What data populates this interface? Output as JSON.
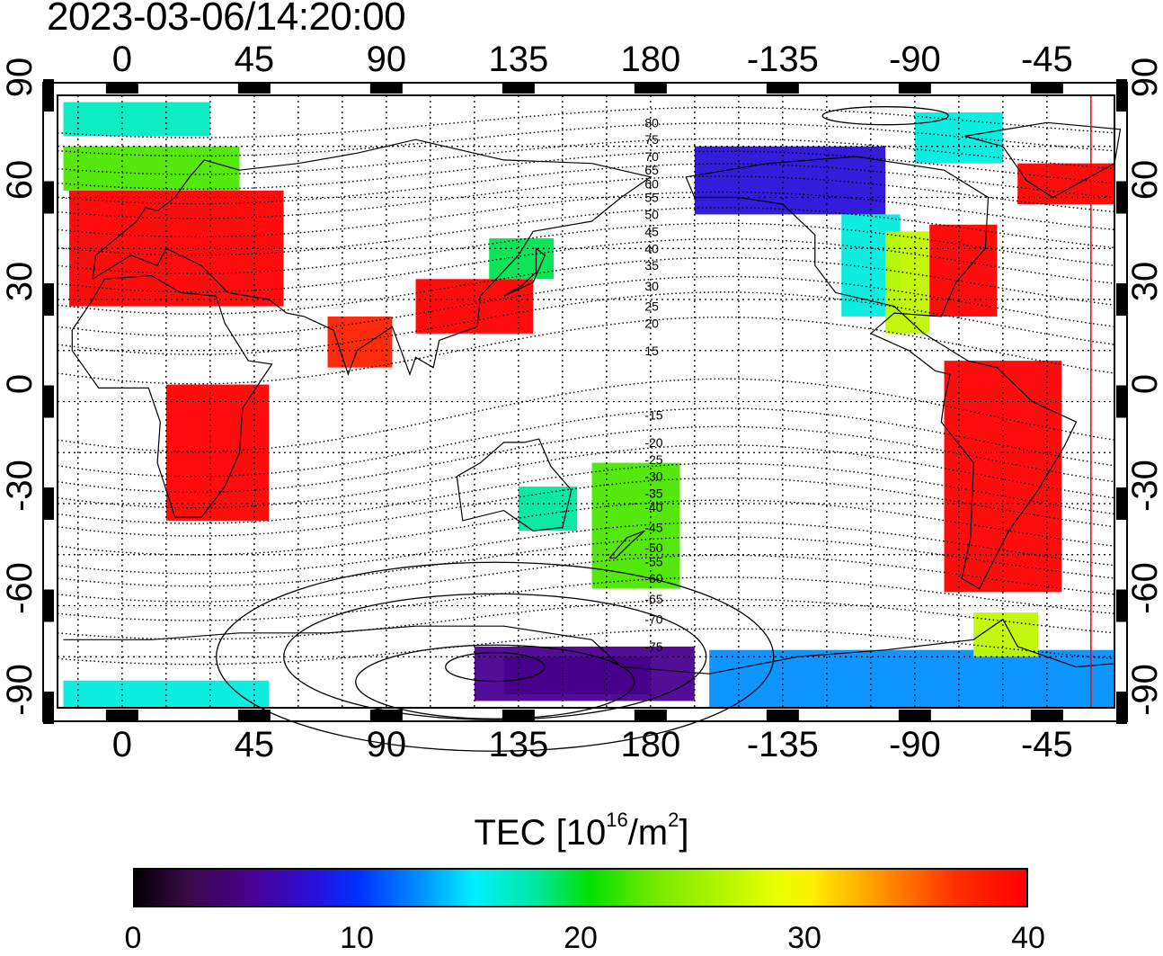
{
  "timestamp": "2023-03-06/14:20:00",
  "chart_data": {
    "type": "heatmap",
    "title": "2023-03-06/14:20:00",
    "x_axis": {
      "top_ticks": [
        {
          "label": "0",
          "lon": 0
        },
        {
          "label": "45",
          "lon": 45
        },
        {
          "label": "90",
          "lon": 90
        },
        {
          "label": "135",
          "lon": 135
        },
        {
          "label": "180",
          "lon": 180
        },
        {
          "label": "-135",
          "lon": 225
        },
        {
          "label": "-90",
          "lon": 270
        },
        {
          "label": "-45",
          "lon": 315
        }
      ],
      "bottom_ticks": [
        {
          "label": "0",
          "lon": 0
        },
        {
          "label": "45",
          "lon": 45
        },
        {
          "label": "90",
          "lon": 90
        },
        {
          "label": "135",
          "lon": 135
        },
        {
          "label": "180",
          "lon": 180
        },
        {
          "label": "-135",
          "lon": 225
        },
        {
          "label": "-90",
          "lon": 270
        },
        {
          "label": "-45",
          "lon": 315
        }
      ],
      "range": [
        -22,
        338
      ]
    },
    "y_axis": {
      "ticks": [
        {
          "label": "90",
          "lat": 90
        },
        {
          "label": "60",
          "lat": 60
        },
        {
          "label": "30",
          "lat": 30
        },
        {
          "label": "0",
          "lat": 0
        },
        {
          "label": "-30",
          "lat": -30
        },
        {
          "label": "-60",
          "lat": -60
        },
        {
          "label": "-90",
          "lat": -90
        }
      ],
      "range": [
        -90,
        90
      ]
    },
    "magnetic_lat_labels": [
      {
        "label": "80",
        "lat": 82
      },
      {
        "label": "75",
        "lat": 77
      },
      {
        "label": "70",
        "lat": 72
      },
      {
        "label": "65",
        "lat": 68
      },
      {
        "label": "60",
        "lat": 64
      },
      {
        "label": "55",
        "lat": 60
      },
      {
        "label": "50",
        "lat": 55
      },
      {
        "label": "45",
        "lat": 50
      },
      {
        "label": "40",
        "lat": 45
      },
      {
        "label": "35",
        "lat": 40
      },
      {
        "label": "30",
        "lat": 34
      },
      {
        "label": "25",
        "lat": 28
      },
      {
        "label": "20",
        "lat": 23
      },
      {
        "label": "15",
        "lat": 15
      },
      {
        "label": "-15",
        "lat": -4
      },
      {
        "label": "-20",
        "lat": -12
      },
      {
        "label": "-25",
        "lat": -17
      },
      {
        "label": "-30",
        "lat": -22
      },
      {
        "label": "-35",
        "lat": -27
      },
      {
        "label": "-40",
        "lat": -31
      },
      {
        "label": "-45",
        "lat": -37
      },
      {
        "label": "-50",
        "lat": -43
      },
      {
        "label": "-55",
        "lat": -47
      },
      {
        "label": "-60",
        "lat": -52
      },
      {
        "label": "-65",
        "lat": -58
      },
      {
        "label": "-70",
        "lat": -64
      },
      {
        "label": "-75",
        "lat": -72
      }
    ],
    "tec_regions": [
      {
        "name": "europe",
        "lon": [
          -18,
          55
        ],
        "lat": [
          28,
          62
        ],
        "tec": 40
      },
      {
        "name": "n-europe",
        "lon": [
          -20,
          40
        ],
        "lat": [
          62,
          75
        ],
        "tec": 22
      },
      {
        "name": "arctic-atlantic",
        "lon": [
          -20,
          30
        ],
        "lat": [
          78,
          88
        ],
        "tec": 17
      },
      {
        "name": "east-asia",
        "lon": [
          100,
          140
        ],
        "lat": [
          20,
          36
        ],
        "tec": 40
      },
      {
        "name": "japan",
        "lon": [
          125,
          147
        ],
        "lat": [
          36,
          48
        ],
        "tec": 19
      },
      {
        "name": "india",
        "lon": [
          70,
          92
        ],
        "lat": [
          10,
          25
        ],
        "tec": 38
      },
      {
        "name": "africa",
        "lon": [
          15,
          50
        ],
        "lat": [
          -35,
          5
        ],
        "tec": 40
      },
      {
        "name": "canada",
        "lon": [
          195,
          260
        ],
        "lat": [
          55,
          75
        ],
        "tec": 8
      },
      {
        "name": "w-usa",
        "lon": [
          245,
          265
        ],
        "lat": [
          25,
          55
        ],
        "tec": 16
      },
      {
        "name": "mid-usa",
        "lon": [
          260,
          275
        ],
        "lat": [
          20,
          50
        ],
        "tec": 27
      },
      {
        "name": "e-usa",
        "lon": [
          275,
          298
        ],
        "lat": [
          25,
          52
        ],
        "tec": 40
      },
      {
        "name": "greenland-n",
        "lon": [
          270,
          300
        ],
        "lat": [
          70,
          85
        ],
        "tec": 16
      },
      {
        "name": "n-atlantic",
        "lon": [
          305,
          338
        ],
        "lat": [
          58,
          70
        ],
        "tec": 40
      },
      {
        "name": "s-america",
        "lon": [
          280,
          320
        ],
        "lat": [
          -56,
          12
        ],
        "tec": 40
      },
      {
        "name": "nz-pacific",
        "lon": [
          160,
          190
        ],
        "lat": [
          -55,
          -18
        ],
        "tec": 22
      },
      {
        "name": "australia",
        "lon": [
          135,
          155
        ],
        "lat": [
          -38,
          -25
        ],
        "tec": 18
      },
      {
        "name": "antarctica-west",
        "lon": [
          200,
          338
        ],
        "lat": [
          -90,
          -73
        ],
        "tec": 13
      },
      {
        "name": "antarctic-peninsula",
        "lon": [
          290,
          312
        ],
        "lat": [
          -75,
          -62
        ],
        "tec": 27
      },
      {
        "name": "antarctica-dark",
        "lon": [
          130,
          180
        ],
        "lat": [
          -86,
          -75
        ],
        "tec": 1
      },
      {
        "name": "antarctica-purple",
        "lon": [
          120,
          195
        ],
        "lat": [
          -88,
          -72
        ],
        "tec": 5
      },
      {
        "name": "antarctica-east",
        "lon": [
          -20,
          50
        ],
        "lat": [
          -90,
          -82
        ],
        "tec": 16
      }
    ],
    "colorbar": {
      "label_prefix": "TEC  [10",
      "label_exp1": "16",
      "label_mid": "/m",
      "label_exp2": "2",
      "label_suffix": "]",
      "min": 0,
      "max": 40,
      "ticks": [
        {
          "label": "0",
          "value": 0
        },
        {
          "label": "10",
          "value": 10
        },
        {
          "label": "20",
          "value": 20
        },
        {
          "label": "30",
          "value": 30
        },
        {
          "label": "40",
          "value": 40
        }
      ]
    },
    "grid": true,
    "terminator_lon": 330
  }
}
